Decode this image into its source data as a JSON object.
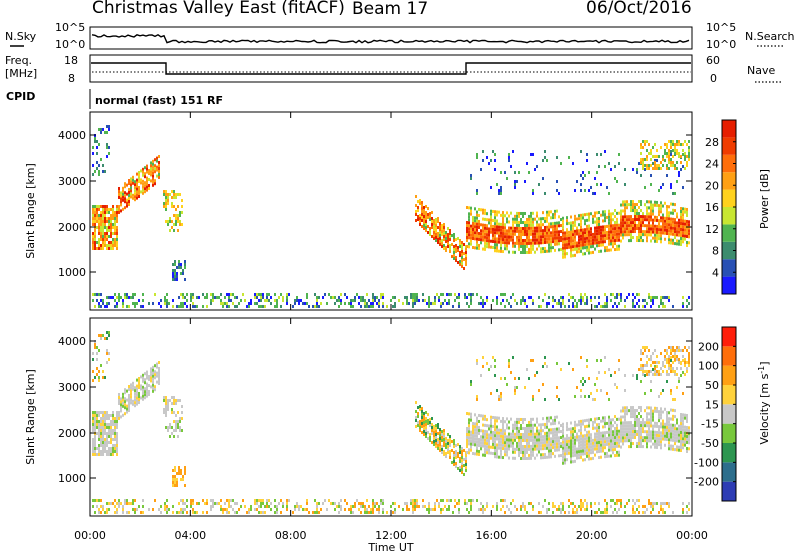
{
  "header": {
    "title": "Christmas Valley East (fitACF)",
    "beam": "Beam 17",
    "date": "06/Oct/2016"
  },
  "strip": {
    "nsky_label": "N.Sky",
    "nsky_ticks": [
      "10^5",
      "10^0"
    ],
    "nsearch_label": "N.Search",
    "nsearch_ticks": [
      "10^5",
      "10^0"
    ],
    "freq_label": "Freq.",
    "freq_unit": "[MHz]",
    "freq_ticks": [
      "18",
      "8"
    ],
    "nave_label": "Nave",
    "nave_ticks": [
      "60",
      "0"
    ],
    "cpid_label": "CPID",
    "cpid_value": "normal (fast) 151 RF"
  },
  "chart_data": [
    {
      "type": "heatmap",
      "ylabel": "Slant Range [km]",
      "yticks": [
        "4000",
        "3000",
        "2000",
        "1000"
      ],
      "xlabel": "Time UT",
      "xticks": [
        "00:00",
        "04:00",
        "08:00",
        "12:00",
        "16:00",
        "20:00",
        "00:00"
      ],
      "colorbar_label": "Power [dB]",
      "colorbar_ticks": [
        "28",
        "24",
        "20",
        "16",
        "12",
        "8",
        "4"
      ],
      "colors": [
        "#1a1aff",
        "#2850b4",
        "#3c8c6e",
        "#50b450",
        "#c8e632",
        "#ffd21e",
        "#ffa014",
        "#ff6e0a",
        "#f03c00",
        "#e61e00"
      ]
    },
    {
      "type": "heatmap",
      "ylabel": "Slant Range [km]",
      "yticks": [
        "4000",
        "3000",
        "2000",
        "1000"
      ],
      "xlabel": "Time UT",
      "xticks": [
        "00:00",
        "04:00",
        "08:00",
        "12:00",
        "16:00",
        "20:00",
        "00:00"
      ],
      "colorbar_label": "Velocity [m s^-1]",
      "colorbar_ticks": [
        "200",
        "100",
        "50",
        "15",
        "-15",
        "-50",
        "-100",
        "-200"
      ],
      "colors": [
        "#2d3cb4",
        "#2d6e8c",
        "#2d9650",
        "#78c83c",
        "#c8c8c8",
        "#ffd23c",
        "#ffa014",
        "#ff6e0a",
        "#ff1e0a"
      ]
    }
  ]
}
